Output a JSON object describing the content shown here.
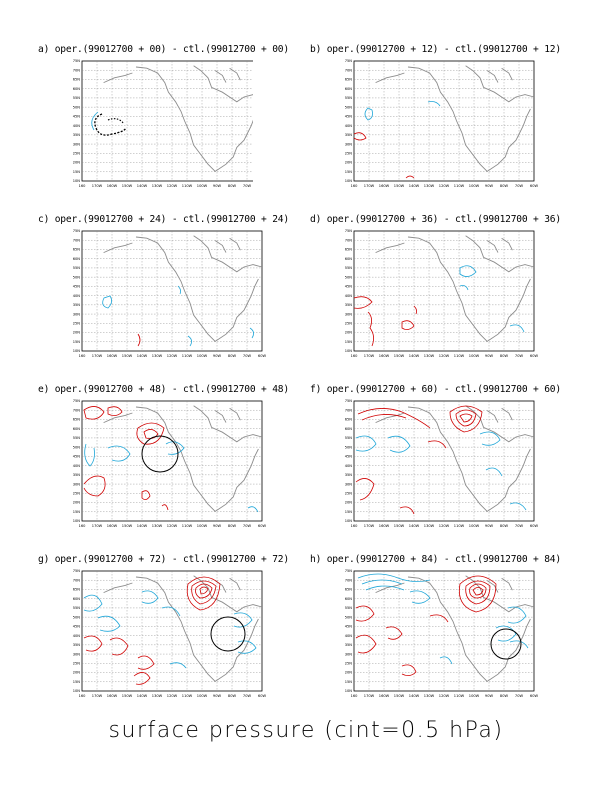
{
  "caption": "surface pressure (cint=0.5 hPa)",
  "axes": {
    "lat_labels": [
      "75N",
      "70N",
      "65N",
      "60N",
      "55N",
      "50N",
      "45N",
      "40N",
      "35N",
      "30N",
      "25N",
      "20N",
      "15N",
      "10N"
    ],
    "lon_labels": [
      "160",
      "170W",
      "160W",
      "150W",
      "140W",
      "130W",
      "120W",
      "110W",
      "100W",
      "90W",
      "80W",
      "70W",
      "60W"
    ]
  },
  "colors": {
    "positive": "#d00000",
    "negative": "#1ea6d8",
    "coast": "#8c8c8c",
    "marker": "#000000"
  },
  "panels": [
    {
      "id": "a",
      "title": "a) oper.(99012700 + 00) - ctl.(99012700 + 00)"
    },
    {
      "id": "b",
      "title": "b) oper.(99012700 + 12) - ctl.(99012700 + 12)"
    },
    {
      "id": "c",
      "title": "c) oper.(99012700 + 24) - ctl.(99012700 + 24)"
    },
    {
      "id": "d",
      "title": "d) oper.(99012700 + 36) - ctl.(99012700 + 36)"
    },
    {
      "id": "e",
      "title": "e) oper.(99012700 + 48) - ctl.(99012700 + 48)"
    },
    {
      "id": "f",
      "title": "f) oper.(99012700 + 60) - ctl.(99012700 + 60)"
    },
    {
      "id": "g",
      "title": "g) oper.(99012700 + 72) - ctl.(99012700 + 72)"
    },
    {
      "id": "h",
      "title": "h) oper.(99012700 + 84) - ctl.(99012700 + 84)"
    }
  ]
}
